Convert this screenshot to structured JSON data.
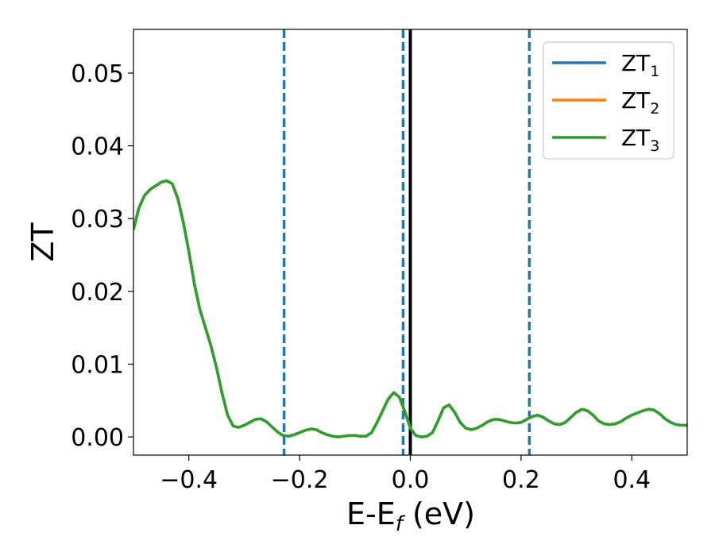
{
  "chart_data": {
    "type": "line",
    "xlabel": "E-E",
    "xlabel_subscript": "f",
    "xlabel_unit": " (eV)",
    "ylabel": "ZT",
    "xlim": [
      -0.5,
      0.5
    ],
    "ylim": [
      -0.0025,
      0.056
    ],
    "x_ticks": [
      -0.4,
      -0.2,
      0.0,
      0.2,
      0.4
    ],
    "x_tick_labels": [
      "−0.4",
      "−0.2",
      "0.0",
      "0.2",
      "0.4"
    ],
    "y_ticks": [
      0.0,
      0.01,
      0.02,
      0.03,
      0.04,
      0.05
    ],
    "y_tick_labels": [
      "0.00",
      "0.01",
      "0.02",
      "0.03",
      "0.04",
      "0.05"
    ],
    "grid": false,
    "legend_position": "top-right",
    "series": [
      {
        "name": "ZT",
        "name_subscript": "1",
        "color": "#1f77b4",
        "x": [
          -0.5,
          -0.49,
          -0.48,
          -0.47,
          -0.46,
          -0.45,
          -0.44,
          -0.43,
          -0.42,
          -0.41,
          -0.4,
          -0.39,
          -0.38,
          -0.37,
          -0.36,
          -0.35,
          -0.34,
          -0.33,
          -0.32,
          -0.31,
          -0.3,
          -0.29,
          -0.28,
          -0.27,
          -0.26,
          -0.25,
          -0.24,
          -0.23,
          -0.22,
          -0.21,
          -0.2,
          -0.19,
          -0.18,
          -0.17,
          -0.16,
          -0.15,
          -0.14,
          -0.13,
          -0.12,
          -0.11,
          -0.1,
          -0.09,
          -0.08,
          -0.07,
          -0.06,
          -0.05,
          -0.04,
          -0.03,
          -0.02,
          -0.01,
          0.0,
          0.01,
          0.02,
          0.03,
          0.04,
          0.05,
          0.06,
          0.07,
          0.08,
          0.09,
          0.1,
          0.11,
          0.12,
          0.13,
          0.14,
          0.15,
          0.16,
          0.17,
          0.18,
          0.19,
          0.2,
          0.21,
          0.22,
          0.23,
          0.24,
          0.25,
          0.26,
          0.27,
          0.28,
          0.29,
          0.3,
          0.31,
          0.32,
          0.33,
          0.34,
          0.35,
          0.36,
          0.37,
          0.38,
          0.39,
          0.4,
          0.41,
          0.42,
          0.43,
          0.44,
          0.45,
          0.46,
          0.47,
          0.48,
          0.49,
          0.5
        ],
        "values": [
          0.0285,
          0.0315,
          0.0332,
          0.034,
          0.0345,
          0.035,
          0.0352,
          0.0348,
          0.0328,
          0.0295,
          0.0255,
          0.021,
          0.0175,
          0.015,
          0.0125,
          0.0095,
          0.006,
          0.003,
          0.0015,
          0.0013,
          0.0016,
          0.002,
          0.0024,
          0.0025,
          0.0021,
          0.0014,
          0.0007,
          0.0002,
          0.0001,
          0.0003,
          0.0006,
          0.0009,
          0.0011,
          0.001,
          0.0006,
          0.0003,
          0.0001,
          0.0,
          0.0001,
          0.0002,
          0.0002,
          0.0001,
          0.0001,
          0.0006,
          0.002,
          0.0036,
          0.0052,
          0.0061,
          0.0055,
          0.0035,
          0.0012,
          0.0002,
          0.0,
          0.0001,
          0.0006,
          0.0022,
          0.004,
          0.0044,
          0.0034,
          0.002,
          0.0012,
          0.001,
          0.0012,
          0.0016,
          0.0021,
          0.0024,
          0.0024,
          0.0022,
          0.002,
          0.0019,
          0.002,
          0.0024,
          0.0028,
          0.003,
          0.0027,
          0.0022,
          0.0018,
          0.0017,
          0.002,
          0.0027,
          0.0034,
          0.0038,
          0.0036,
          0.003,
          0.0022,
          0.0018,
          0.0017,
          0.0018,
          0.0021,
          0.0026,
          0.003,
          0.0033,
          0.0036,
          0.0038,
          0.0037,
          0.0032,
          0.0025,
          0.002,
          0.0017,
          0.0016,
          0.0016
        ]
      },
      {
        "name": "ZT",
        "name_subscript": "2",
        "color": "#ff7f0e",
        "same_as_series": 0
      },
      {
        "name": "ZT",
        "name_subscript": "3",
        "color": "#2ca02c",
        "same_as_series": 0
      }
    ],
    "vlines": [
      {
        "x": -0.228,
        "style": "dashed",
        "color": "#1f77b4"
      },
      {
        "x": -0.013,
        "style": "dashed",
        "color": "#1f77b4"
      },
      {
        "x": 0.0,
        "style": "solid",
        "color": "#000000"
      },
      {
        "x": 0.215,
        "style": "dashed",
        "color": "#1f77b4"
      }
    ]
  }
}
